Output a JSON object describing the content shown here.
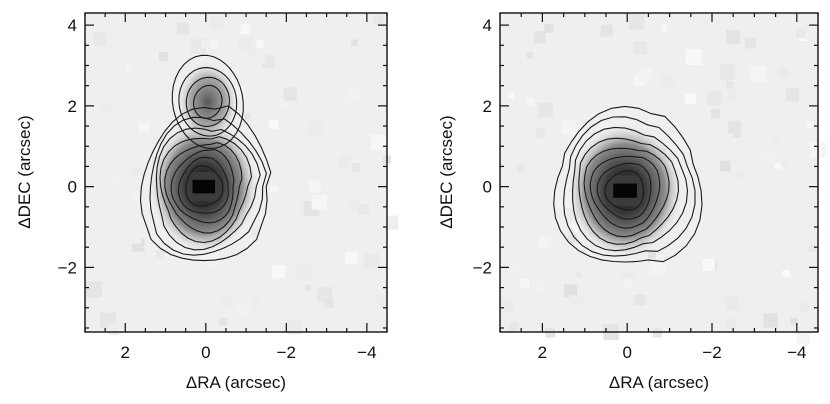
{
  "chart_data": [
    {
      "type": "heatmap",
      "panel": "left",
      "xlabel": "ΔRA (arcsec)",
      "ylabel": "ΔDEC (arcsec)",
      "xlim": [
        3.0,
        -4.5
      ],
      "ylim": [
        -3.6,
        4.3
      ],
      "x_ticks": [
        2,
        0,
        -2,
        -4
      ],
      "x_tick_labels": [
        "2",
        "0",
        "−2",
        "−4"
      ],
      "y_ticks": [
        -2,
        0,
        2,
        4
      ],
      "y_tick_labels": [
        "−2",
        "0",
        "2",
        "4"
      ],
      "colormap": "grayscale",
      "sources": [
        {
          "x": 0.05,
          "y": 0.0,
          "peak": 1.0
        },
        {
          "x": -0.05,
          "y": 2.1,
          "peak": 0.32
        }
      ],
      "contour_levels": [
        0.06,
        0.12,
        0.2,
        0.3,
        0.42,
        0.56,
        0.72,
        0.9
      ]
    },
    {
      "type": "heatmap",
      "panel": "right",
      "xlabel": "ΔRA (arcsec)",
      "ylabel": "ΔDEC (arcsec)",
      "xlim": [
        3.0,
        -4.5
      ],
      "ylim": [
        -3.6,
        4.3
      ],
      "x_ticks": [
        2,
        0,
        -2,
        -4
      ],
      "x_tick_labels": [
        "2",
        "0",
        "−2",
        "−4"
      ],
      "y_ticks": [
        -2,
        0,
        2,
        4
      ],
      "y_tick_labels": [
        "−2",
        "0",
        "2",
        "4"
      ],
      "colormap": "grayscale",
      "sources": [
        {
          "x": 0.05,
          "y": -0.1,
          "peak": 1.0
        }
      ],
      "contour_levels": [
        0.06,
        0.12,
        0.2,
        0.3,
        0.42,
        0.56,
        0.72,
        0.9
      ]
    }
  ]
}
